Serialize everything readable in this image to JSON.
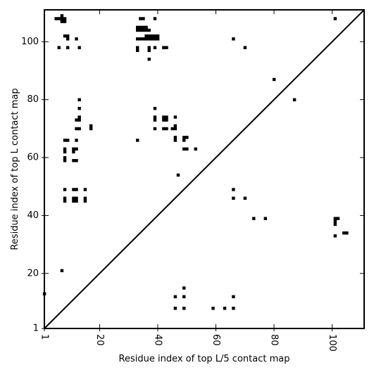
{
  "chart_data": {
    "type": "scatter",
    "xlabel": "Residue index of top L/5 contact map",
    "ylabel": "Residue index of top L contact map",
    "xlim": [
      1,
      111
    ],
    "ylim": [
      1,
      111
    ],
    "x_ticks": [
      1,
      20,
      40,
      60,
      80,
      100
    ],
    "y_ticks": [
      1,
      20,
      40,
      60,
      80,
      100
    ],
    "x_tick_rotation_deg": 90,
    "diagonal_line": true,
    "grid": false,
    "legend": "none",
    "marker_color": "#000000",
    "series": [
      {
        "points": [
          [
            5,
            108
          ],
          [
            6,
            108
          ],
          [
            7,
            108
          ],
          [
            8,
            108
          ],
          [
            7,
            107
          ],
          [
            8,
            107
          ],
          [
            7,
            109
          ],
          [
            8,
            102
          ],
          [
            9,
            102
          ],
          [
            9,
            101
          ],
          [
            12,
            101
          ],
          [
            6,
            98
          ],
          [
            9,
            98
          ],
          [
            13,
            98
          ],
          [
            34,
            108
          ],
          [
            35,
            108
          ],
          [
            39,
            108
          ],
          [
            33,
            105
          ],
          [
            34,
            105
          ],
          [
            35,
            105
          ],
          [
            36,
            105
          ],
          [
            33,
            104
          ],
          [
            34,
            104
          ],
          [
            35,
            104
          ],
          [
            36,
            104
          ],
          [
            37,
            104
          ],
          [
            33,
            101
          ],
          [
            34,
            101
          ],
          [
            35,
            101
          ],
          [
            36,
            101
          ],
          [
            37,
            101
          ],
          [
            38,
            101
          ],
          [
            39,
            101
          ],
          [
            40,
            101
          ],
          [
            36,
            102
          ],
          [
            37,
            102
          ],
          [
            38,
            102
          ],
          [
            39,
            102
          ],
          [
            40,
            102
          ],
          [
            33,
            98
          ],
          [
            33,
            97
          ],
          [
            37,
            98
          ],
          [
            37,
            97
          ],
          [
            39,
            98
          ],
          [
            42,
            98
          ],
          [
            43,
            98
          ],
          [
            37,
            94
          ],
          [
            66,
            101
          ],
          [
            70,
            98
          ],
          [
            80,
            87
          ],
          [
            87,
            80
          ],
          [
            13,
            80
          ],
          [
            13,
            77
          ],
          [
            13,
            74
          ],
          [
            12,
            73
          ],
          [
            13,
            73
          ],
          [
            12,
            70
          ],
          [
            13,
            70
          ],
          [
            17,
            71
          ],
          [
            17,
            70
          ],
          [
            39,
            77
          ],
          [
            39,
            74
          ],
          [
            39,
            73
          ],
          [
            39,
            70
          ],
          [
            42,
            74
          ],
          [
            43,
            74
          ],
          [
            42,
            73
          ],
          [
            43,
            73
          ],
          [
            42,
            70
          ],
          [
            43,
            70
          ],
          [
            45,
            70
          ],
          [
            46,
            70
          ],
          [
            46,
            71
          ],
          [
            46,
            74
          ],
          [
            46,
            67
          ],
          [
            46,
            66
          ],
          [
            49,
            67
          ],
          [
            50,
            67
          ],
          [
            49,
            66
          ],
          [
            49,
            63
          ],
          [
            50,
            63
          ],
          [
            53,
            63
          ],
          [
            33,
            66
          ],
          [
            47,
            54
          ],
          [
            8,
            66
          ],
          [
            9,
            66
          ],
          [
            12,
            66
          ],
          [
            8,
            63
          ],
          [
            11,
            63
          ],
          [
            12,
            63
          ],
          [
            8,
            62
          ],
          [
            11,
            62
          ],
          [
            8,
            60
          ],
          [
            8,
            59
          ],
          [
            11,
            59
          ],
          [
            12,
            59
          ],
          [
            8,
            49
          ],
          [
            11,
            49
          ],
          [
            12,
            49
          ],
          [
            15,
            49
          ],
          [
            8,
            46
          ],
          [
            11,
            46
          ],
          [
            12,
            46
          ],
          [
            15,
            46
          ],
          [
            8,
            45
          ],
          [
            11,
            45
          ],
          [
            12,
            45
          ],
          [
            15,
            45
          ],
          [
            66,
            49
          ],
          [
            66,
            46
          ],
          [
            70,
            46
          ],
          [
            73,
            39
          ],
          [
            77,
            39
          ],
          [
            101,
            39
          ],
          [
            102,
            39
          ],
          [
            101,
            38
          ],
          [
            101,
            37
          ],
          [
            104,
            34
          ],
          [
            105,
            34
          ],
          [
            101,
            33
          ],
          [
            7,
            21
          ],
          [
            1,
            13
          ],
          [
            49,
            15
          ],
          [
            46,
            12
          ],
          [
            49,
            12
          ],
          [
            66,
            12
          ],
          [
            46,
            8
          ],
          [
            49,
            8
          ],
          [
            59,
            8
          ],
          [
            63,
            8
          ],
          [
            66,
            8
          ],
          [
            101,
            108
          ]
        ]
      }
    ]
  }
}
